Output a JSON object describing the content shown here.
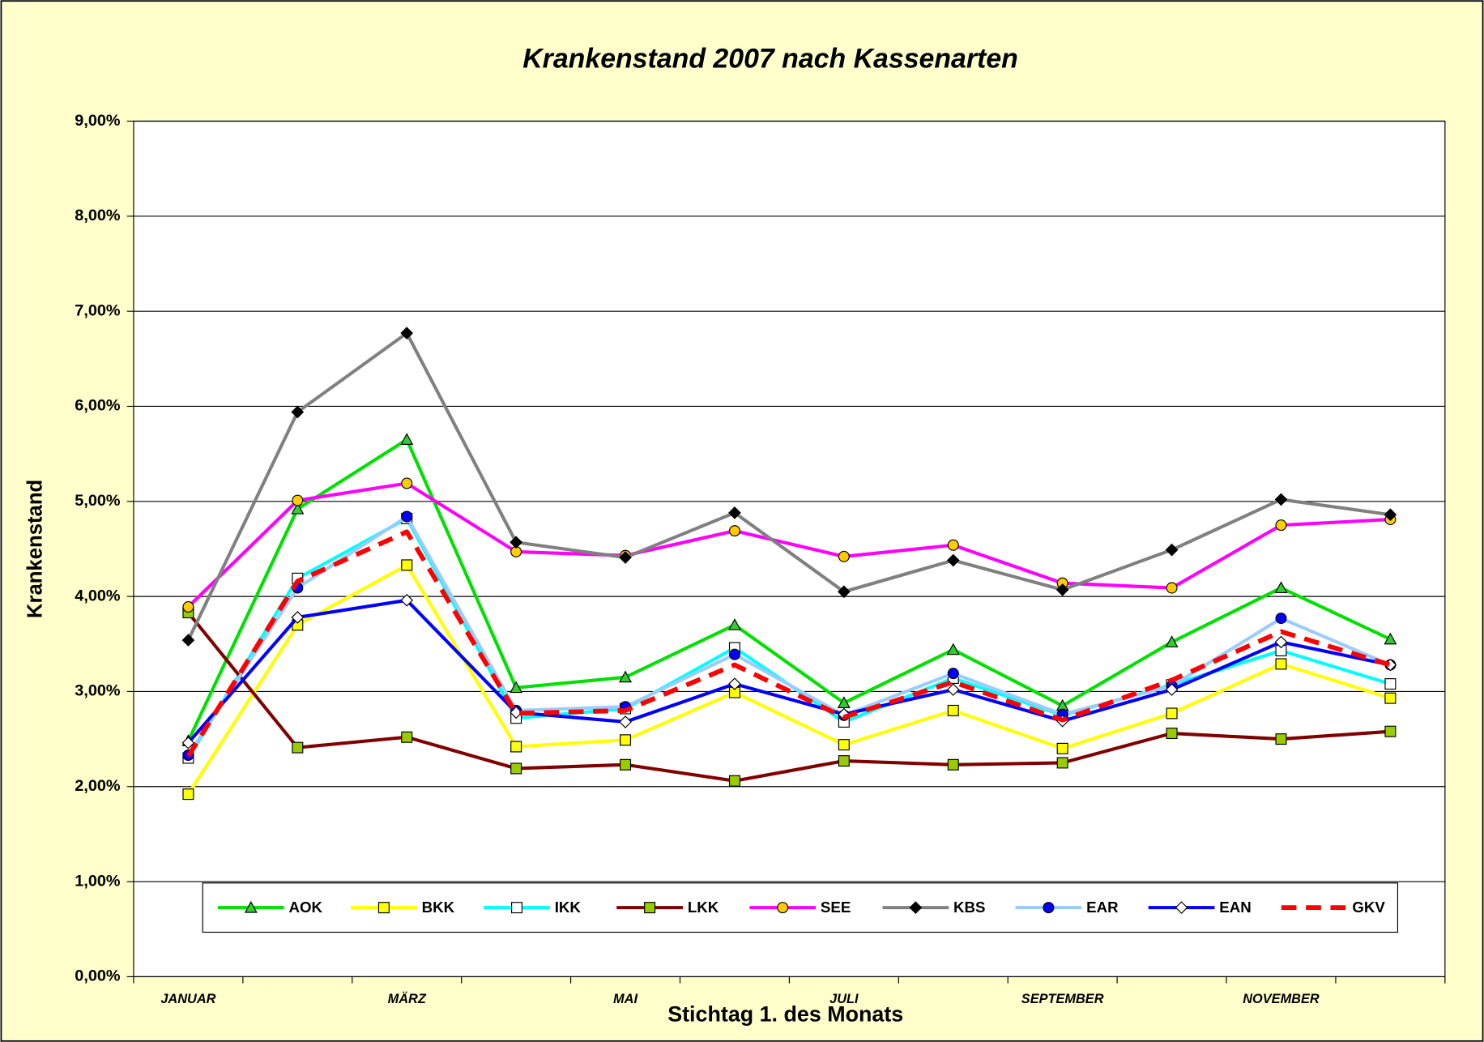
{
  "chart_data": {
    "type": "line",
    "title": "Krankenstand 2007 nach Kassenarten",
    "x_label": "Stichtag 1. des Monats",
    "y_label": "Krankenstand",
    "categories": [
      "JANUAR",
      null,
      "MÄRZ",
      null,
      "MAI",
      null,
      "JULI",
      null,
      "SEPTEMBER",
      null,
      "NOVEMBER",
      null
    ],
    "ylim": [
      0,
      9
    ],
    "yticks": [
      {
        "value": 0,
        "label": "0,00%"
      },
      {
        "value": 1,
        "label": "1,00%"
      },
      {
        "value": 2,
        "label": "2,00%"
      },
      {
        "value": 3,
        "label": "3,00%"
      },
      {
        "value": 4,
        "label": "4,00%"
      },
      {
        "value": 5,
        "label": "5,00%"
      },
      {
        "value": 6,
        "label": "6,00%"
      },
      {
        "value": 7,
        "label": "7,00%"
      },
      {
        "value": 8,
        "label": "8,00%"
      },
      {
        "value": 9,
        "label": "9,00%"
      }
    ],
    "grid": true,
    "legend": "bottom",
    "series": [
      {
        "name": "AOK",
        "color": "#00e000",
        "marker": "triangle",
        "marker_color": "#33cc33",
        "values": [
          2.48,
          4.92,
          5.65,
          3.04,
          3.15,
          3.7,
          2.88,
          3.44,
          2.85,
          3.52,
          4.09,
          3.55
        ]
      },
      {
        "name": "BKK",
        "color": "#ffff00",
        "marker": "square",
        "marker_color": "#ffff00",
        "values": [
          1.92,
          3.7,
          4.33,
          2.42,
          2.49,
          2.99,
          2.44,
          2.8,
          2.4,
          2.77,
          3.29,
          2.93
        ]
      },
      {
        "name": "IKK",
        "color": "#00ffff",
        "marker": "square",
        "marker_color": "#ffffff",
        "values": [
          2.3,
          4.19,
          4.82,
          2.72,
          2.82,
          3.46,
          2.68,
          3.14,
          2.75,
          3.07,
          3.43,
          3.08
        ]
      },
      {
        "name": "LKK",
        "color": "#800000",
        "marker": "square",
        "marker_color": "#99cc00",
        "values": [
          3.83,
          2.41,
          2.52,
          2.19,
          2.23,
          2.06,
          2.27,
          2.23,
          2.25,
          2.56,
          2.5,
          2.58
        ]
      },
      {
        "name": "SEE",
        "color": "#ff00ff",
        "marker": "circle",
        "marker_color": "#ffcc00",
        "values": [
          3.89,
          5.01,
          5.19,
          4.47,
          4.43,
          4.69,
          4.42,
          4.54,
          4.14,
          4.09,
          4.75,
          4.81
        ]
      },
      {
        "name": "KBS",
        "color": "#808080",
        "marker": "diamond",
        "marker_color": "#000000",
        "values": [
          3.54,
          5.94,
          6.77,
          4.57,
          4.41,
          4.88,
          4.05,
          4.38,
          4.07,
          4.49,
          5.02,
          4.86
        ]
      },
      {
        "name": "EAR",
        "color": "#99ccff",
        "marker": "circle",
        "marker_color": "#0000ff",
        "values": [
          2.33,
          4.09,
          4.84,
          2.8,
          2.84,
          3.39,
          2.75,
          3.19,
          2.76,
          3.06,
          3.77,
          3.28
        ]
      },
      {
        "name": "EAN",
        "color": "#0000ff",
        "marker": "diamond",
        "marker_color": "#ffffff",
        "values": [
          2.46,
          3.78,
          3.96,
          2.78,
          2.68,
          3.08,
          2.76,
          3.02,
          2.69,
          3.02,
          3.52,
          3.28
        ]
      },
      {
        "name": "GKV",
        "color": "#ff0000",
        "marker": "none",
        "dashed": true,
        "values": [
          2.32,
          4.16,
          4.68,
          2.77,
          2.8,
          3.28,
          2.73,
          3.1,
          2.7,
          3.12,
          3.63,
          3.28
        ]
      }
    ]
  }
}
